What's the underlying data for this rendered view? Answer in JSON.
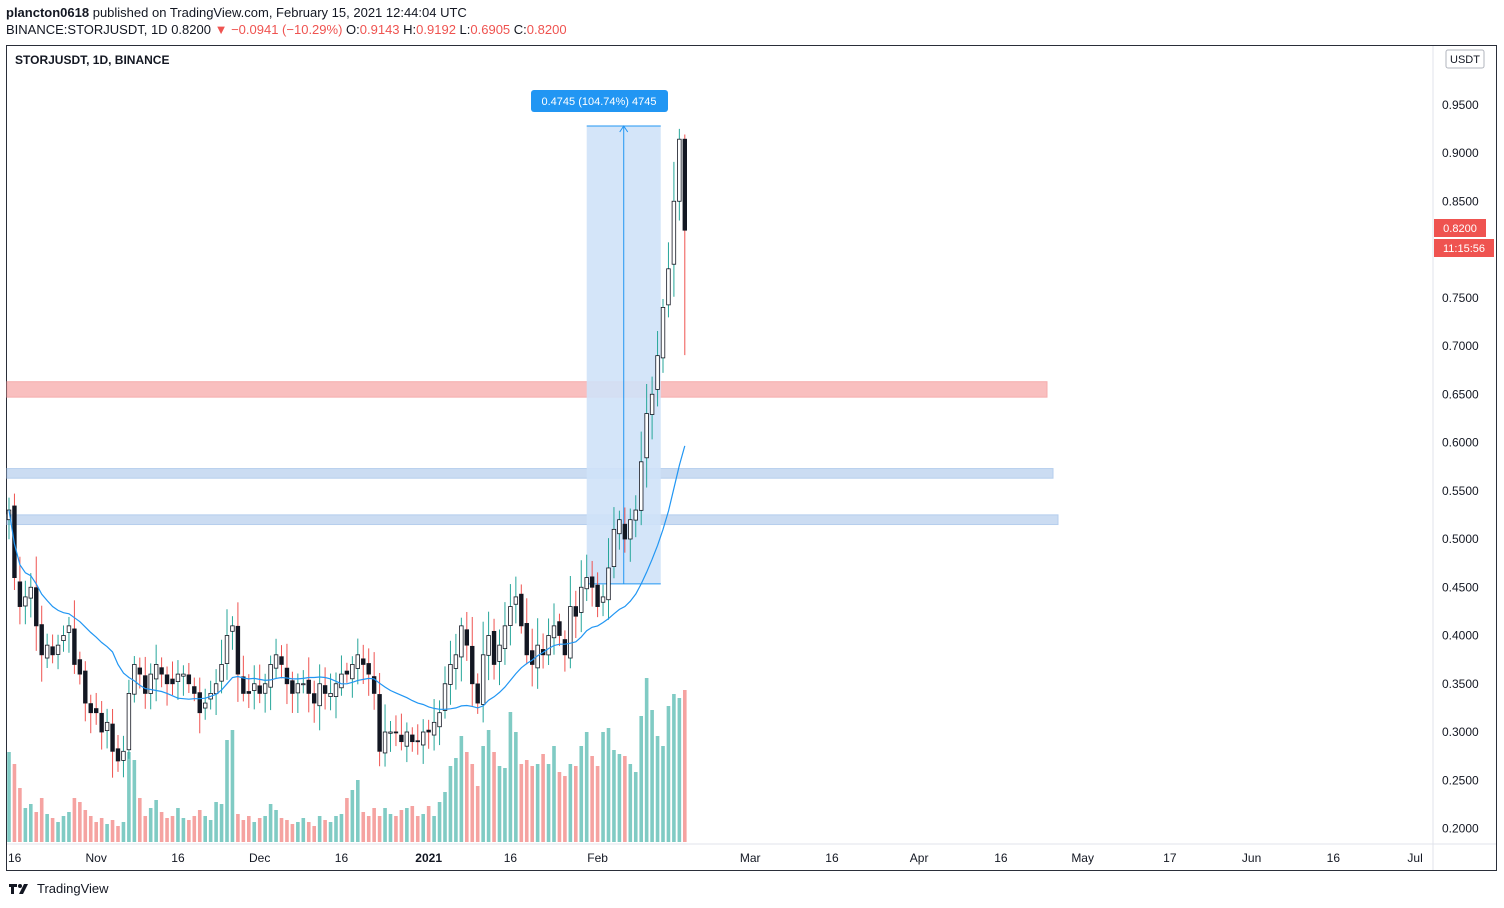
{
  "header": {
    "user": "plancton0618",
    "published_text": "published on TradingView.com, February 15, 2021 12:44:04 UTC",
    "symbol_line": "BINANCE:STORJUSDT, 1D",
    "last": "0.8200",
    "arrow": "▼",
    "change": "−0.0941 (−10.29%)",
    "o_label": "O:",
    "o": "0.9143",
    "h_label": "H:",
    "h": "0.9192",
    "l_label": "L:",
    "l": "0.6905",
    "c_label": "C:",
    "c": "0.8200"
  },
  "pane": {
    "title": "STORJUSDT, 1D, BINANCE",
    "currency": "USDT",
    "price_label": "0.8200",
    "countdown": "11:15:56",
    "measure_label": "0.4745 (104.74%) 4745"
  },
  "footer": {
    "brand": "TradingView"
  },
  "colors": {
    "up": "#26a69a",
    "down": "#ef5350",
    "ma": "#2196f3",
    "up_vol": "#80cbc4",
    "down_vol": "#f5a3a1",
    "red_zone": "#f8b4b4",
    "blue_zone": "#c2d7f0",
    "measure": "#cfe2f8"
  },
  "chart_data": {
    "type": "candlestick",
    "symbol": "STORJUSDT",
    "interval": "1D",
    "exchange": "BINANCE",
    "ylim": [
      0.19,
      0.99
    ],
    "y_ticks": [
      "0.9500",
      "0.9000",
      "0.8500",
      "0.8000",
      "0.7500",
      "0.7000",
      "0.6500",
      "0.6000",
      "0.5500",
      "0.5000",
      "0.4500",
      "0.4000",
      "0.3500",
      "0.3000",
      "0.2500",
      "0.2000"
    ],
    "x_ticks": [
      {
        "label": "16",
        "date": "2020-10-16"
      },
      {
        "label": "Nov",
        "date": "2020-11-01"
      },
      {
        "label": "16",
        "date": "2020-11-16"
      },
      {
        "label": "Dec",
        "date": "2020-12-01"
      },
      {
        "label": "16",
        "date": "2020-12-16"
      },
      {
        "label": "2021",
        "date": "2021-01-01",
        "bold": true
      },
      {
        "label": "16",
        "date": "2021-01-16"
      },
      {
        "label": "Feb",
        "date": "2021-02-01"
      },
      {
        "label": "Mar",
        "date": "2021-03-01"
      },
      {
        "label": "16",
        "date": "2021-03-16"
      },
      {
        "label": "Apr",
        "date": "2021-04-01"
      },
      {
        "label": "16",
        "date": "2021-04-16"
      },
      {
        "label": "May",
        "date": "2021-05-01"
      },
      {
        "label": "17",
        "date": "2021-05-17"
      },
      {
        "label": "Jun",
        "date": "2021-06-01"
      },
      {
        "label": "16",
        "date": "2021-06-16"
      },
      {
        "label": "Jul",
        "date": "2021-07-01"
      }
    ],
    "first_date": "2020-10-16",
    "closes": [
      0.53,
      0.46,
      0.43,
      0.44,
      0.45,
      0.41,
      0.38,
      0.39,
      0.38,
      0.39,
      0.4,
      0.41,
      0.37,
      0.36,
      0.33,
      0.32,
      0.32,
      0.3,
      0.31,
      0.28,
      0.27,
      0.28,
      0.34,
      0.37,
      0.36,
      0.34,
      0.36,
      0.37,
      0.36,
      0.35,
      0.35,
      0.36,
      0.36,
      0.35,
      0.34,
      0.32,
      0.33,
      0.34,
      0.35,
      0.37,
      0.4,
      0.41,
      0.36,
      0.34,
      0.34,
      0.35,
      0.34,
      0.35,
      0.37,
      0.38,
      0.37,
      0.35,
      0.34,
      0.35,
      0.35,
      0.34,
      0.33,
      0.35,
      0.34,
      0.34,
      0.35,
      0.36,
      0.36,
      0.37,
      0.38,
      0.37,
      0.36,
      0.34,
      0.28,
      0.3,
      0.3,
      0.3,
      0.29,
      0.3,
      0.29,
      0.29,
      0.3,
      0.3,
      0.31,
      0.32,
      0.35,
      0.37,
      0.38,
      0.41,
      0.39,
      0.35,
      0.33,
      0.38,
      0.4,
      0.37,
      0.39,
      0.41,
      0.43,
      0.44,
      0.41,
      0.38,
      0.37,
      0.39,
      0.38,
      0.4,
      0.41,
      0.4,
      0.38,
      0.43,
      0.42,
      0.45,
      0.46,
      0.45,
      0.43,
      0.44,
      0.47,
      0.51,
      0.52,
      0.5,
      0.52,
      0.53,
      0.58,
      0.63,
      0.65,
      0.69,
      0.74,
      0.78,
      0.85,
      0.91,
      0.82
    ],
    "volume_relative": [
      0.45,
      0.39,
      0.27,
      0.17,
      0.19,
      0.15,
      0.22,
      0.14,
      0.12,
      0.1,
      0.13,
      0.15,
      0.22,
      0.2,
      0.16,
      0.13,
      0.1,
      0.12,
      0.09,
      0.11,
      0.08,
      0.1,
      0.45,
      0.41,
      0.22,
      0.13,
      0.17,
      0.21,
      0.15,
      0.12,
      0.13,
      0.17,
      0.12,
      0.11,
      0.13,
      0.16,
      0.13,
      0.11,
      0.2,
      0.19,
      0.51,
      0.56,
      0.14,
      0.11,
      0.13,
      0.1,
      0.12,
      0.13,
      0.19,
      0.16,
      0.12,
      0.11,
      0.09,
      0.1,
      0.12,
      0.1,
      0.08,
      0.13,
      0.11,
      0.1,
      0.13,
      0.14,
      0.22,
      0.26,
      0.31,
      0.15,
      0.13,
      0.17,
      0.13,
      0.17,
      0.14,
      0.13,
      0.16,
      0.17,
      0.18,
      0.13,
      0.14,
      0.18,
      0.13,
      0.2,
      0.25,
      0.38,
      0.42,
      0.53,
      0.45,
      0.39,
      0.28,
      0.48,
      0.56,
      0.45,
      0.38,
      0.37,
      0.65,
      0.55,
      0.39,
      0.41,
      0.38,
      0.39,
      0.44,
      0.39,
      0.48,
      0.35,
      0.33,
      0.39,
      0.38,
      0.48,
      0.55,
      0.43,
      0.38,
      0.55,
      0.57,
      0.46,
      0.44,
      0.43,
      0.39,
      0.35,
      0.63,
      0.82,
      0.66,
      0.53,
      0.48,
      0.68,
      0.74,
      0.72,
      0.76,
      1.0,
      0.54
    ],
    "moving_average": {
      "name": "MA",
      "period": 20
    },
    "horizontal_zones": [
      {
        "color": "red",
        "from": 0.647,
        "to": 0.663
      },
      {
        "color": "blue",
        "from": 0.563,
        "to": 0.573
      },
      {
        "color": "blue",
        "from": 0.515,
        "to": 0.525
      }
    ],
    "measure": {
      "from_price": 0.4535,
      "to_price": 0.928,
      "from_date": "2021-01-30",
      "to_date": "2021-02-08",
      "label": "0.4745 (104.74%) 4745"
    },
    "last_price": 0.82
  }
}
